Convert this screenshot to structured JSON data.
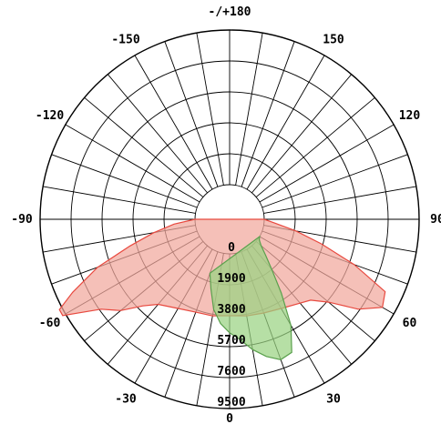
{
  "chart_data": {
    "type": "polar",
    "angle_labels": [
      {
        "angle": 180,
        "text": "-/+180"
      },
      {
        "angle": -150,
        "text": "-150"
      },
      {
        "angle": 150,
        "text": "150"
      },
      {
        "angle": -120,
        "text": "-120"
      },
      {
        "angle": 120,
        "text": "120"
      },
      {
        "angle": -90,
        "text": "-90"
      },
      {
        "angle": 90,
        "text": "90"
      },
      {
        "angle": -60,
        "text": "-60"
      },
      {
        "angle": 60,
        "text": "60"
      },
      {
        "angle": -30,
        "text": "-30"
      },
      {
        "angle": 30,
        "text": "30"
      },
      {
        "angle": 0,
        "text": "0"
      }
    ],
    "radial_ticks": [
      0,
      1900,
      3800,
      5700,
      7600,
      9500
    ],
    "radial_labels": [
      "0",
      "1900",
      "3800",
      "5700",
      "7600",
      "9500"
    ],
    "rmax": 9500,
    "rings": 6,
    "spoke_step_deg": 10,
    "series": [
      {
        "color": "#e8493f",
        "fill": "#f1a79c",
        "points": [
          [
            -90,
            0
          ],
          [
            -85,
            1300
          ],
          [
            -80,
            2600
          ],
          [
            -75,
            4200
          ],
          [
            -70,
            6500
          ],
          [
            -65,
            8500
          ],
          [
            -62,
            9700
          ],
          [
            -60,
            9700
          ],
          [
            -55,
            7500
          ],
          [
            -50,
            6600
          ],
          [
            -45,
            5400
          ],
          [
            -40,
            4700
          ],
          [
            -30,
            4200
          ],
          [
            -20,
            3950
          ],
          [
            -10,
            3900
          ],
          [
            0,
            3800
          ],
          [
            10,
            3900
          ],
          [
            20,
            4000
          ],
          [
            30,
            4200
          ],
          [
            40,
            4600
          ],
          [
            45,
            4900
          ],
          [
            50,
            5800
          ],
          [
            55,
            7500
          ],
          [
            60,
            8700
          ],
          [
            65,
            8400
          ],
          [
            70,
            6000
          ],
          [
            75,
            3700
          ],
          [
            80,
            2000
          ],
          [
            85,
            700
          ],
          [
            90,
            0
          ]
        ]
      },
      {
        "color": "#5aa04d",
        "fill": "#9ad282",
        "points": [
          [
            -20,
            1400
          ],
          [
            -15,
            2300
          ],
          [
            -10,
            3500
          ],
          [
            -5,
            4300
          ],
          [
            0,
            4850
          ],
          [
            5,
            5300
          ],
          [
            10,
            6000
          ],
          [
            15,
            6600
          ],
          [
            20,
            7050
          ],
          [
            25,
            6900
          ],
          [
            30,
            5400
          ],
          [
            35,
            3400
          ],
          [
            40,
            1900
          ],
          [
            45,
            1000
          ],
          [
            50,
            400
          ],
          [
            55,
            100
          ],
          [
            60,
            0
          ]
        ]
      }
    ]
  }
}
